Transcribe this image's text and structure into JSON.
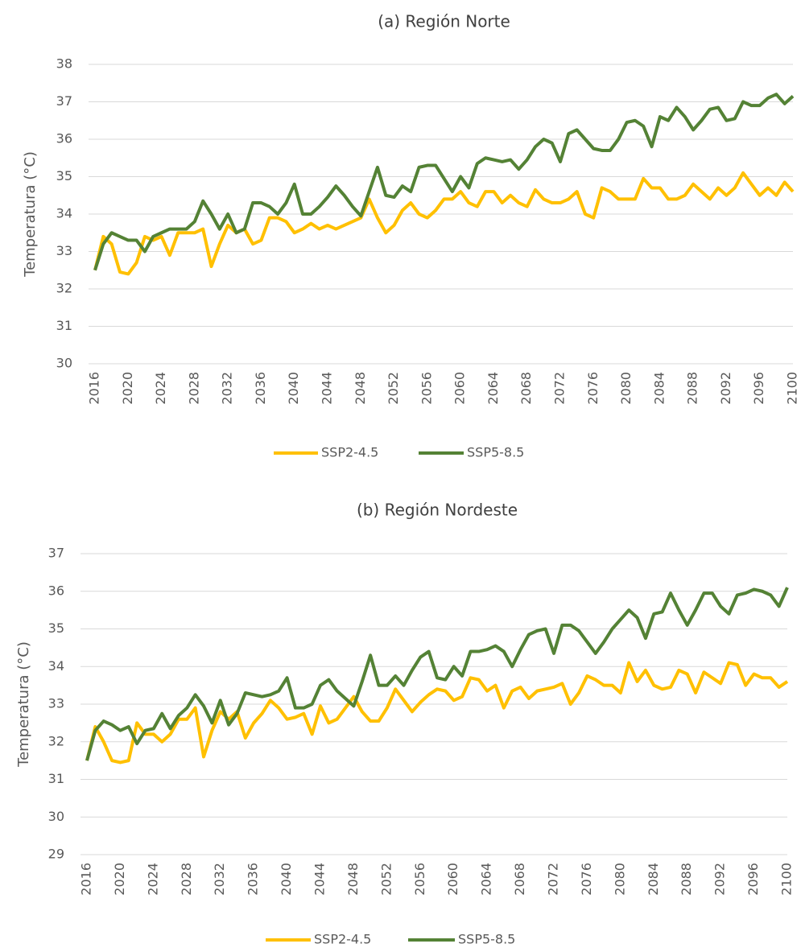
{
  "chart_data": [
    {
      "type": "line",
      "title": "(a) Región Norte",
      "y_label": "Temperatura (°C)",
      "x": [
        2016,
        2017,
        2018,
        2019,
        2020,
        2021,
        2022,
        2023,
        2024,
        2025,
        2026,
        2027,
        2028,
        2029,
        2030,
        2031,
        2032,
        2033,
        2034,
        2035,
        2036,
        2037,
        2038,
        2039,
        2040,
        2041,
        2042,
        2043,
        2044,
        2045,
        2046,
        2047,
        2048,
        2049,
        2050,
        2051,
        2052,
        2053,
        2054,
        2055,
        2056,
        2057,
        2058,
        2059,
        2060,
        2061,
        2062,
        2063,
        2064,
        2065,
        2066,
        2067,
        2068,
        2069,
        2070,
        2071,
        2072,
        2073,
        2074,
        2075,
        2076,
        2077,
        2078,
        2079,
        2080,
        2081,
        2082,
        2083,
        2084,
        2085,
        2086,
        2087,
        2088,
        2089,
        2090,
        2091,
        2092,
        2093,
        2094,
        2095,
        2096,
        2097,
        2098,
        2099,
        2100
      ],
      "xlim": [
        2016,
        2100
      ],
      "xticks": [
        2016,
        2020,
        2024,
        2028,
        2032,
        2036,
        2040,
        2044,
        2048,
        2052,
        2056,
        2060,
        2064,
        2068,
        2072,
        2076,
        2080,
        2084,
        2088,
        2092,
        2096,
        2100
      ],
      "ylim": [
        30,
        38
      ],
      "yticks": [
        30,
        31,
        32,
        33,
        34,
        35,
        36,
        37,
        38
      ],
      "grid": true,
      "legend": "bottom",
      "series": [
        {
          "name": "SSP2-4.5",
          "color": "#FFC000",
          "values": [
            32.5,
            33.4,
            33.2,
            32.45,
            32.4,
            32.7,
            33.4,
            33.3,
            33.4,
            32.9,
            33.5,
            33.5,
            33.5,
            33.6,
            32.6,
            33.2,
            33.7,
            33.5,
            33.6,
            33.2,
            33.3,
            33.9,
            33.9,
            33.8,
            33.5,
            33.6,
            33.75,
            33.6,
            33.7,
            33.6,
            33.7,
            33.8,
            33.9,
            34.4,
            33.9,
            33.5,
            33.7,
            34.1,
            34.3,
            34.0,
            33.9,
            34.1,
            34.4,
            34.4,
            34.6,
            34.3,
            34.2,
            34.6,
            34.6,
            34.3,
            34.5,
            34.3,
            34.2,
            34.65,
            34.4,
            34.3,
            34.3,
            34.4,
            34.6,
            34.0,
            33.9,
            34.7,
            34.6,
            34.4,
            34.4,
            34.4,
            34.95,
            34.7,
            34.7,
            34.4,
            34.4,
            34.5,
            34.8,
            34.6,
            34.4,
            34.7,
            34.5,
            34.7,
            35.1,
            34.8,
            34.5,
            34.7,
            34.5,
            34.85,
            34.6
          ]
        },
        {
          "name": "SSP5-8.5",
          "color": "#548235",
          "values": [
            32.5,
            33.2,
            33.5,
            33.4,
            33.3,
            33.3,
            33.0,
            33.4,
            33.5,
            33.6,
            33.6,
            33.6,
            33.8,
            34.35,
            34.0,
            33.6,
            34.0,
            33.5,
            33.6,
            34.3,
            34.3,
            34.2,
            34.0,
            34.3,
            34.8,
            34.0,
            34.0,
            34.2,
            34.45,
            34.75,
            34.5,
            34.2,
            33.95,
            34.6,
            35.25,
            34.5,
            34.45,
            34.75,
            34.6,
            35.25,
            35.3,
            35.3,
            34.95,
            34.6,
            35.0,
            34.7,
            35.35,
            35.5,
            35.45,
            35.4,
            35.45,
            35.2,
            35.45,
            35.8,
            36.0,
            35.9,
            35.4,
            36.15,
            36.25,
            36.0,
            35.75,
            35.7,
            35.7,
            36.0,
            36.45,
            36.5,
            36.35,
            35.8,
            36.6,
            36.5,
            36.85,
            36.6,
            36.25,
            36.5,
            36.8,
            36.85,
            36.5,
            36.55,
            37.0,
            36.9,
            36.9,
            37.1,
            37.2,
            36.95,
            37.15
          ]
        }
      ]
    },
    {
      "type": "line",
      "title": "(b) Región Nordeste",
      "y_label": "Temperatura (°C)",
      "x": [
        2016,
        2017,
        2018,
        2019,
        2020,
        2021,
        2022,
        2023,
        2024,
        2025,
        2026,
        2027,
        2028,
        2029,
        2030,
        2031,
        2032,
        2033,
        2034,
        2035,
        2036,
        2037,
        2038,
        2039,
        2040,
        2041,
        2042,
        2043,
        2044,
        2045,
        2046,
        2047,
        2048,
        2049,
        2050,
        2051,
        2052,
        2053,
        2054,
        2055,
        2056,
        2057,
        2058,
        2059,
        2060,
        2061,
        2062,
        2063,
        2064,
        2065,
        2066,
        2067,
        2068,
        2069,
        2070,
        2071,
        2072,
        2073,
        2074,
        2075,
        2076,
        2077,
        2078,
        2079,
        2080,
        2081,
        2082,
        2083,
        2084,
        2085,
        2086,
        2087,
        2088,
        2089,
        2090,
        2091,
        2092,
        2093,
        2094,
        2095,
        2096,
        2097,
        2098,
        2099,
        2100
      ],
      "xlim": [
        2016,
        2100
      ],
      "xticks": [
        2016,
        2020,
        2024,
        2028,
        2032,
        2036,
        2040,
        2044,
        2048,
        2052,
        2056,
        2060,
        2064,
        2068,
        2072,
        2076,
        2080,
        2084,
        2088,
        2092,
        2096,
        2100
      ],
      "ylim": [
        29,
        37
      ],
      "yticks": [
        29,
        30,
        31,
        32,
        33,
        34,
        35,
        36,
        37
      ],
      "grid": true,
      "legend": "bottom",
      "series": [
        {
          "name": "SSP2-4.5",
          "color": "#FFC000",
          "values": [
            31.5,
            32.4,
            32.0,
            31.5,
            31.45,
            31.5,
            32.5,
            32.2,
            32.2,
            32.0,
            32.2,
            32.6,
            32.6,
            32.9,
            31.6,
            32.3,
            32.8,
            32.6,
            32.8,
            32.1,
            32.5,
            32.75,
            33.1,
            32.9,
            32.6,
            32.65,
            32.75,
            32.2,
            32.95,
            32.5,
            32.6,
            32.9,
            33.2,
            32.8,
            32.55,
            32.55,
            32.9,
            33.4,
            33.1,
            32.8,
            33.05,
            33.25,
            33.4,
            33.35,
            33.1,
            33.2,
            33.7,
            33.65,
            33.35,
            33.5,
            32.9,
            33.35,
            33.45,
            33.15,
            33.35,
            33.4,
            33.45,
            33.55,
            33.0,
            33.3,
            33.75,
            33.65,
            33.5,
            33.5,
            33.3,
            34.1,
            33.6,
            33.9,
            33.5,
            33.4,
            33.45,
            33.9,
            33.8,
            33.3,
            33.85,
            33.7,
            33.55,
            34.1,
            34.05,
            33.5,
            33.8,
            33.7,
            33.7,
            33.45,
            33.6
          ]
        },
        {
          "name": "SSP5-8.5",
          "color": "#548235",
          "values": [
            31.5,
            32.3,
            32.55,
            32.45,
            32.3,
            32.4,
            31.95,
            32.3,
            32.35,
            32.75,
            32.35,
            32.7,
            32.9,
            33.25,
            32.95,
            32.5,
            33.1,
            32.45,
            32.75,
            33.3,
            33.25,
            33.2,
            33.25,
            33.35,
            33.7,
            32.9,
            32.9,
            33.0,
            33.5,
            33.65,
            33.35,
            33.15,
            32.95,
            33.6,
            34.3,
            33.5,
            33.5,
            33.75,
            33.5,
            33.9,
            34.25,
            34.4,
            33.7,
            33.65,
            34.0,
            33.75,
            34.4,
            34.4,
            34.45,
            34.55,
            34.4,
            34.0,
            34.45,
            34.85,
            34.95,
            35.0,
            34.35,
            35.1,
            35.1,
            34.95,
            34.65,
            34.35,
            34.65,
            35.0,
            35.25,
            35.5,
            35.3,
            34.75,
            35.4,
            35.45,
            35.95,
            35.5,
            35.1,
            35.5,
            35.95,
            35.95,
            35.6,
            35.4,
            35.9,
            35.95,
            36.05,
            36.0,
            35.9,
            35.6,
            36.1
          ]
        }
      ]
    }
  ]
}
